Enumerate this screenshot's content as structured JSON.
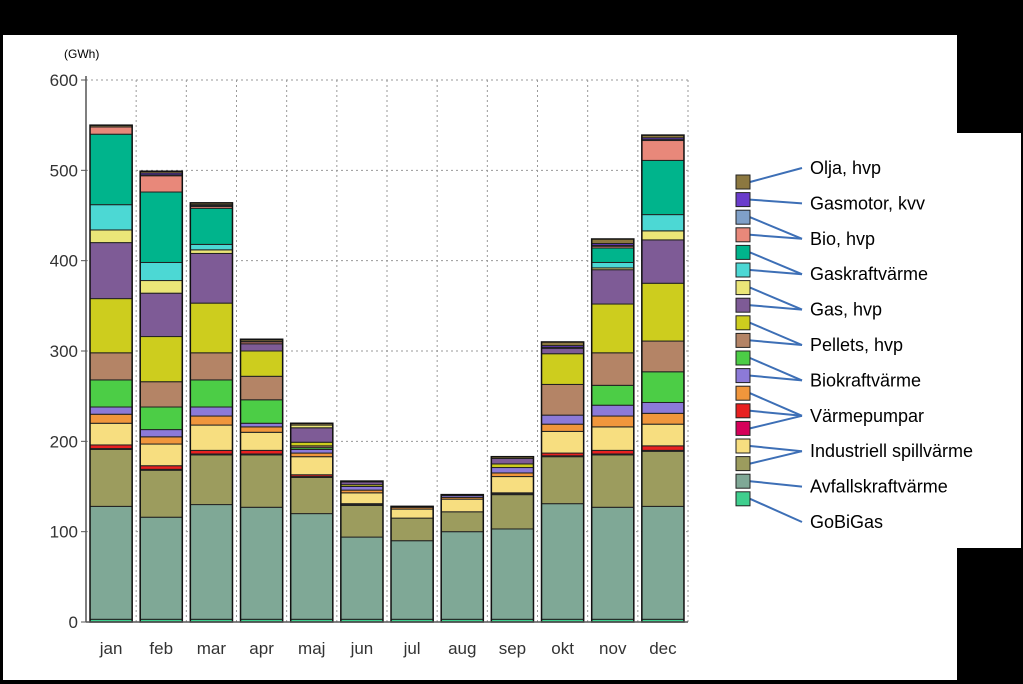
{
  "chart_data": {
    "type": "bar",
    "stacked": true,
    "unit_label": "(GWh)",
    "categories": [
      "jan",
      "feb",
      "mar",
      "apr",
      "maj",
      "jun",
      "jul",
      "aug",
      "sep",
      "okt",
      "nov",
      "dec"
    ],
    "ylim": [
      0,
      600
    ],
    "yticks": [
      0,
      100,
      200,
      300,
      400,
      500,
      600
    ],
    "grid": true,
    "legend_position": "right",
    "series": [
      {
        "name": "GoBiGas",
        "color": "#3fcf8e",
        "values": [
          3,
          3,
          3,
          3,
          3,
          3,
          3,
          3,
          3,
          3,
          3,
          3
        ]
      },
      {
        "name": "Avfallskraftvärme",
        "color": "#7fa896",
        "values": [
          125,
          113,
          127,
          124,
          117,
          91,
          87,
          97,
          100,
          128,
          124,
          125
        ]
      },
      {
        "name": "Industriell spillvärme",
        "color": "#9c9c5e",
        "values": [
          63,
          52,
          55,
          58,
          40,
          35,
          25,
          22,
          38,
          52,
          58,
          61
        ]
      },
      {
        "name": "",
        "color": "#d6005a",
        "values": [
          1,
          1,
          1,
          1,
          1,
          1,
          0,
          0,
          1,
          1,
          1,
          1
        ]
      },
      {
        "name": "",
        "color": "#e82020",
        "values": [
          4,
          4,
          4,
          4,
          2,
          1,
          0,
          0,
          1,
          3,
          4,
          5
        ]
      },
      {
        "name": "Värmepumpar",
        "color": "#f7de80",
        "values": [
          24,
          24,
          28,
          20,
          20,
          12,
          10,
          14,
          18,
          24,
          26,
          24
        ]
      },
      {
        "name": "",
        "color": "#f0963c",
        "values": [
          10,
          8,
          10,
          6,
          4,
          3,
          2,
          2,
          4,
          8,
          12,
          12
        ]
      },
      {
        "name": "Biokraftvärme",
        "color": "#8c7ad8",
        "values": [
          8,
          8,
          10,
          4,
          4,
          4,
          1,
          2,
          6,
          10,
          12,
          12
        ]
      },
      {
        "name": "",
        "color": "#4ccd46",
        "values": [
          30,
          25,
          30,
          26,
          2,
          0,
          0,
          0,
          0,
          0,
          22,
          34
        ]
      },
      {
        "name": "Pellets, hvp",
        "color": "#b48466",
        "values": [
          30,
          28,
          30,
          26,
          2,
          0,
          0,
          0,
          0,
          34,
          36,
          34
        ]
      },
      {
        "name": "",
        "color": "#cdcd1e",
        "values": [
          60,
          50,
          55,
          28,
          4,
          2,
          0,
          0,
          4,
          34,
          54,
          64
        ]
      },
      {
        "name": "Gas, hvp",
        "color": "#7e5b96",
        "values": [
          62,
          48,
          55,
          8,
          16,
          3,
          0,
          0,
          6,
          6,
          38,
          48
        ]
      },
      {
        "name": "",
        "color": "#ebe678",
        "values": [
          14,
          14,
          4,
          0,
          3,
          0,
          0,
          0,
          0,
          0,
          2,
          10
        ]
      },
      {
        "name": "Gaskraftvärme",
        "color": "#4cd8d4",
        "values": [
          28,
          20,
          6,
          0,
          0,
          0,
          0,
          0,
          0,
          0,
          6,
          18
        ]
      },
      {
        "name": "",
        "color": "#00b48c",
        "values": [
          78,
          78,
          40,
          0,
          0,
          0,
          0,
          0,
          0,
          0,
          16,
          60
        ]
      },
      {
        "name": "Bio, hvp",
        "color": "#e8887a",
        "values": [
          8,
          18,
          2,
          2,
          0,
          0,
          0,
          0,
          0,
          0,
          2,
          22
        ]
      },
      {
        "name": "",
        "color": "#7fa0c8",
        "values": [
          0,
          1,
          1,
          1,
          0,
          0,
          0,
          0,
          0,
          1,
          1,
          1
        ]
      },
      {
        "name": "Gasmotor, kvv",
        "color": "#6a3ccc",
        "values": [
          0,
          2,
          1,
          0,
          0,
          0,
          0,
          0,
          0,
          2,
          2,
          2
        ]
      },
      {
        "name": "Olja, hvp",
        "color": "#8c7840",
        "values": [
          2,
          2,
          2,
          2,
          2,
          1,
          0,
          1,
          2,
          4,
          5,
          3
        ]
      }
    ]
  },
  "legend": {
    "swatches": [
      "#8c7840",
      "#6a3ccc",
      "#7fa0c8",
      "#e8887a",
      "#00b48c",
      "#4cd8d4",
      "#ebe678",
      "#7e5b96",
      "#cdcd1e",
      "#b48466",
      "#4ccd46",
      "#8c7ad8",
      "#f0963c",
      "#e82020",
      "#d6005a",
      "#f7de80",
      "#9c9c5e",
      "#7fa896",
      "#3fcf8e"
    ],
    "labels": [
      "Olja, hvp",
      "Gasmotor, kvv",
      "Bio, hvp",
      "Gaskraftvärme",
      "Gas, hvp",
      "Pellets, hvp",
      "Biokraftvärme",
      "Värmepumpar",
      "Industriell spillvärme",
      "Avfallskraftvärme",
      "GoBiGas"
    ],
    "connections": [
      [
        0,
        0
      ],
      [
        1,
        1
      ],
      [
        2,
        2
      ],
      [
        3,
        2
      ],
      [
        4,
        3
      ],
      [
        5,
        3
      ],
      [
        6,
        4
      ],
      [
        7,
        4
      ],
      [
        8,
        5
      ],
      [
        9,
        5
      ],
      [
        10,
        6
      ],
      [
        11,
        6
      ],
      [
        12,
        7
      ],
      [
        13,
        7
      ],
      [
        14,
        7
      ],
      [
        15,
        8
      ],
      [
        16,
        8
      ],
      [
        17,
        9
      ],
      [
        18,
        10
      ]
    ]
  }
}
